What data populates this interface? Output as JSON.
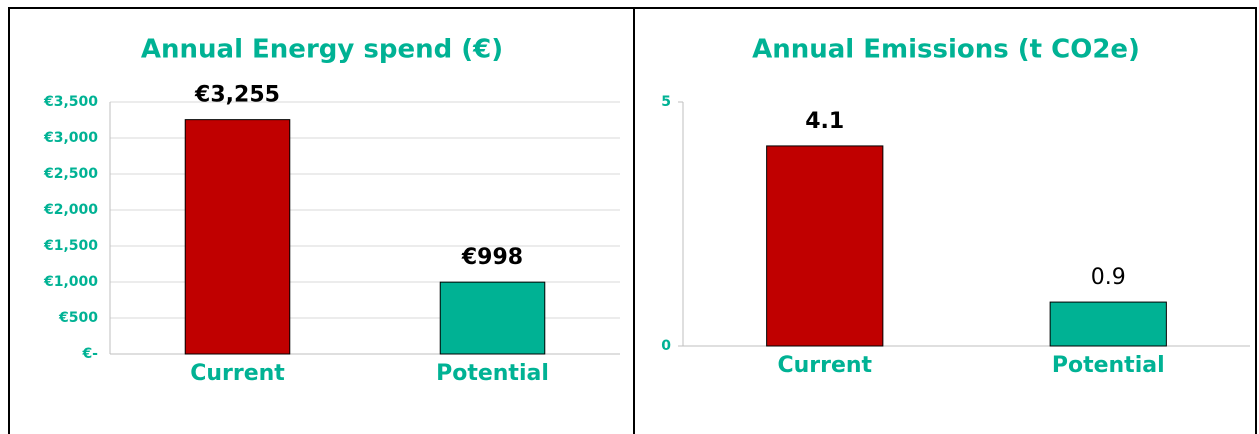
{
  "chart_data": [
    {
      "type": "bar",
      "title": "Annual Energy spend (€)",
      "categories": [
        "Current",
        "Potential"
      ],
      "values": [
        3255,
        998
      ],
      "value_labels": [
        "€3,255",
        "€998"
      ],
      "colors": [
        "#c00000",
        "#00b294"
      ],
      "value_label_weights": [
        "bold",
        "bold"
      ],
      "ylim": [
        0,
        3500
      ],
      "yticks": [
        {
          "value": 0,
          "label": "€-"
        },
        {
          "value": 500,
          "label": "€500"
        },
        {
          "value": 1000,
          "label": "€1,000"
        },
        {
          "value": 1500,
          "label": "€1,500"
        },
        {
          "value": 2000,
          "label": "€2,000"
        },
        {
          "value": 2500,
          "label": "€2,500"
        },
        {
          "value": 3000,
          "label": "€3,000"
        },
        {
          "value": 3500,
          "label": "€3,500"
        }
      ],
      "grid": true
    },
    {
      "type": "bar",
      "title": "Annual Emissions (t CO2e)",
      "categories": [
        "Current",
        "Potential"
      ],
      "values": [
        4.1,
        0.9
      ],
      "colors": [
        "#c00000",
        "#00b294"
      ],
      "value_label_weights": [
        "bold",
        "normal"
      ],
      "ylim": [
        0,
        5
      ],
      "yticks": [
        0,
        5
      ],
      "grid": false
    }
  ]
}
